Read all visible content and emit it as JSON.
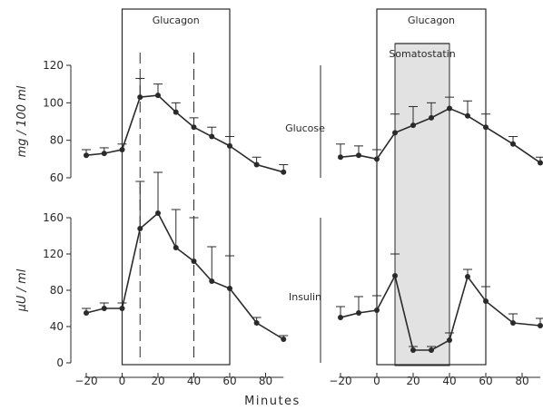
{
  "chart_data": [
    {
      "type": "line",
      "panel": "left",
      "shaded_labels": [
        "Glucagon"
      ],
      "x_ticks": [
        -20,
        0,
        20,
        40,
        60,
        80
      ],
      "xlim": [
        -20,
        90
      ],
      "subplots": [
        {
          "series": "Glucose",
          "ylabel": "mg / 100 ml",
          "ylim": [
            60,
            120
          ],
          "y_ticks": [
            60,
            80,
            100,
            120
          ],
          "x": [
            -20,
            -10,
            0,
            10,
            20,
            30,
            40,
            50,
            60,
            75,
            90
          ],
          "y": [
            72,
            73,
            75,
            103,
            104,
            95,
            87,
            82,
            77,
            67,
            63
          ],
          "err": [
            3,
            3,
            3,
            10,
            6,
            5,
            5,
            5,
            5,
            4,
            4
          ]
        },
        {
          "series": "Insulin",
          "ylabel": "µU / ml",
          "ylim": [
            0,
            160
          ],
          "y_ticks": [
            0,
            40,
            80,
            120,
            160
          ],
          "x": [
            -20,
            -10,
            0,
            10,
            20,
            30,
            40,
            50,
            60,
            75,
            90
          ],
          "y": [
            55,
            60,
            60,
            148,
            165,
            127,
            112,
            90,
            82,
            44,
            26
          ],
          "err": [
            5,
            6,
            6,
            52,
            45,
            42,
            48,
            38,
            36,
            6,
            4
          ]
        }
      ],
      "dashed_markers_x": [
        10,
        40
      ]
    },
    {
      "type": "line",
      "panel": "right",
      "shaded_labels": [
        "Glucagon",
        "Somatostatin"
      ],
      "x_ticks": [
        -20,
        0,
        20,
        40,
        60,
        80
      ],
      "xlim": [
        -20,
        90
      ],
      "subplots": [
        {
          "series": "Glucose",
          "ylim": [
            60,
            120
          ],
          "x": [
            -20,
            -10,
            0,
            10,
            20,
            30,
            40,
            50,
            60,
            75,
            90
          ],
          "y": [
            71,
            72,
            70,
            84,
            88,
            92,
            97,
            93,
            87,
            78,
            68
          ],
          "err": [
            7,
            5,
            5,
            10,
            10,
            8,
            6,
            8,
            7,
            4,
            3
          ]
        },
        {
          "series": "Insulin",
          "ylim": [
            0,
            160
          ],
          "x": [
            -20,
            -10,
            0,
            10,
            20,
            30,
            40,
            50,
            60,
            75,
            90
          ],
          "y": [
            50,
            55,
            58,
            96,
            14,
            14,
            25,
            95,
            68,
            44,
            41
          ],
          "err": [
            12,
            18,
            16,
            24,
            4,
            4,
            8,
            8,
            16,
            10,
            8
          ]
        }
      ]
    }
  ],
  "axis": {
    "xlabel": "Minutes"
  },
  "ink_color": "#2a2a2a",
  "shade_color": "#e2e2e2"
}
